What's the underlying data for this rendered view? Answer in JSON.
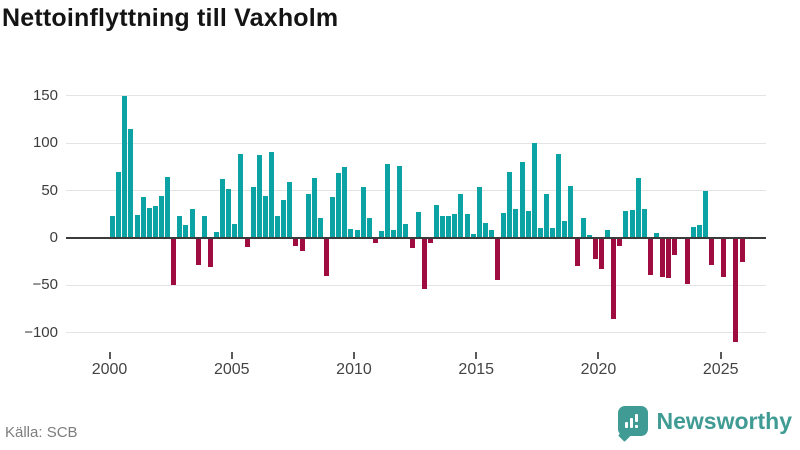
{
  "header": {
    "title": "Nettoinflyttning till Vaxholm"
  },
  "footer": {
    "source_label": "Källa: SCB",
    "brand_name": "Newsworthy"
  },
  "colors": {
    "positive_bar": "#0ba3a3",
    "negative_bar": "#9f0c40",
    "gridline": "#e4e4e4",
    "zero_line": "#3b3b3b",
    "brand_teal": "#3f9b93"
  },
  "chart_data": {
    "type": "bar",
    "title": "Nettoinflyttning till Vaxholm",
    "xlabel": "",
    "ylabel": "",
    "ylim": [
      -125,
      165
    ],
    "grid": true,
    "y_ticks": [
      {
        "v": 150,
        "label": "150"
      },
      {
        "v": 100,
        "label": "100"
      },
      {
        "v": 50,
        "label": "50"
      },
      {
        "v": 0,
        "label": "0"
      },
      {
        "v": -50,
        "label": "−50"
      },
      {
        "v": -100,
        "label": "−100"
      }
    ],
    "x_ticks": [
      {
        "v": 2000,
        "label": "2000"
      },
      {
        "v": 2005,
        "label": "2005"
      },
      {
        "v": 2010,
        "label": "2010"
      },
      {
        "v": 2015,
        "label": "2015"
      },
      {
        "v": 2020,
        "label": "2020"
      },
      {
        "v": 2025,
        "label": "2025"
      }
    ],
    "quarters": [
      "2000 Q1",
      "2000 Q2",
      "2000 Q3",
      "2000 Q4",
      "2001 Q1",
      "2001 Q2",
      "2001 Q3",
      "2001 Q4",
      "2002 Q1",
      "2002 Q2",
      "2002 Q3",
      "2002 Q4",
      "2003 Q1",
      "2003 Q2",
      "2003 Q3",
      "2003 Q4",
      "2004 Q1",
      "2004 Q2",
      "2004 Q3",
      "2004 Q4",
      "2005 Q1",
      "2005 Q2",
      "2005 Q3",
      "2005 Q4",
      "2006 Q1",
      "2006 Q2",
      "2006 Q3",
      "2006 Q4",
      "2007 Q1",
      "2007 Q2",
      "2007 Q3",
      "2007 Q4",
      "2008 Q1",
      "2008 Q2",
      "2008 Q3",
      "2008 Q4",
      "2009 Q1",
      "2009 Q2",
      "2009 Q3",
      "2009 Q4",
      "2010 Q1",
      "2010 Q2",
      "2010 Q3",
      "2010 Q4",
      "2011 Q1",
      "2011 Q2",
      "2011 Q3",
      "2011 Q4",
      "2012 Q1",
      "2012 Q2",
      "2012 Q3",
      "2012 Q4",
      "2013 Q1",
      "2013 Q2",
      "2013 Q3",
      "2013 Q4",
      "2014 Q1",
      "2014 Q2",
      "2014 Q3",
      "2014 Q4",
      "2015 Q1",
      "2015 Q2",
      "2015 Q3",
      "2015 Q4",
      "2016 Q1",
      "2016 Q2",
      "2016 Q3",
      "2016 Q4",
      "2017 Q1",
      "2017 Q2",
      "2017 Q3",
      "2017 Q4",
      "2018 Q1",
      "2018 Q2",
      "2018 Q3",
      "2018 Q4",
      "2019 Q1",
      "2019 Q2",
      "2019 Q3",
      "2019 Q4",
      "2020 Q1",
      "2020 Q2",
      "2020 Q3",
      "2020 Q4",
      "2021 Q1",
      "2021 Q2",
      "2021 Q3",
      "2021 Q4",
      "2022 Q1",
      "2022 Q2",
      "2022 Q3",
      "2022 Q4",
      "2023 Q1",
      "2023 Q2",
      "2023 Q3",
      "2023 Q4",
      "2024 Q1",
      "2024 Q2",
      "2024 Q3",
      "2024 Q4",
      "2025 Q1",
      "2025 Q2",
      "2025 Q3",
      "2025 Q4"
    ],
    "values": [
      23,
      70,
      150,
      115,
      24,
      43,
      32,
      34,
      44,
      64,
      -50,
      23,
      14,
      31,
      -28,
      23,
      -31,
      6,
      62,
      52,
      15,
      88,
      -9,
      54,
      87,
      44,
      91,
      23,
      40,
      59,
      -8,
      -14,
      46,
      63,
      21,
      -40,
      43,
      68,
      75,
      9,
      8,
      54,
      21,
      -5,
      7,
      78,
      8,
      76,
      15,
      -11,
      27,
      -54,
      -5,
      35,
      23,
      23,
      25,
      46,
      25,
      4,
      54,
      16,
      8,
      -44,
      26,
      69,
      31,
      80,
      28,
      100,
      11,
      46,
      11,
      89,
      18,
      55,
      -30,
      21,
      3,
      -22,
      -33,
      8,
      -85,
      -8,
      28,
      30,
      63,
      31,
      -39,
      5,
      -41,
      -42,
      -18,
      0,
      -48,
      12,
      14,
      50,
      -28,
      0,
      -41,
      0,
      -110,
      -25
    ]
  }
}
